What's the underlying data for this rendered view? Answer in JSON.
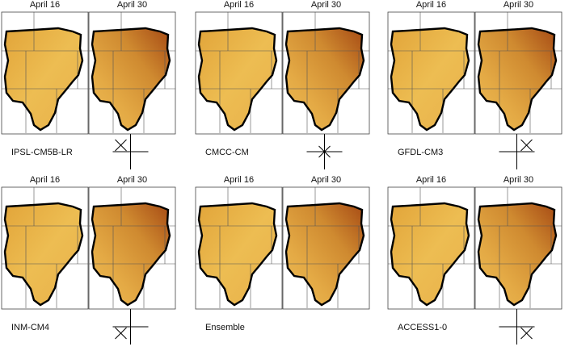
{
  "panels": [
    {
      "name": "IPSL-CM5B-LR",
      "dates": [
        "April 16",
        "April 30"
      ]
    },
    {
      "name": "CMCC-CM",
      "dates": [
        "April 16",
        "April 30"
      ]
    },
    {
      "name": "GFDL-CM3",
      "dates": [
        "April 16",
        "April 30"
      ]
    },
    {
      "name": "INM-CM4",
      "dates": [
        "April 16",
        "April 30"
      ]
    },
    {
      "name": "Ensemble",
      "dates": [
        "April 16",
        "April 30"
      ]
    },
    {
      "name": "ACCESS1-0",
      "dates": [
        "April 16",
        "April 30"
      ]
    }
  ]
}
